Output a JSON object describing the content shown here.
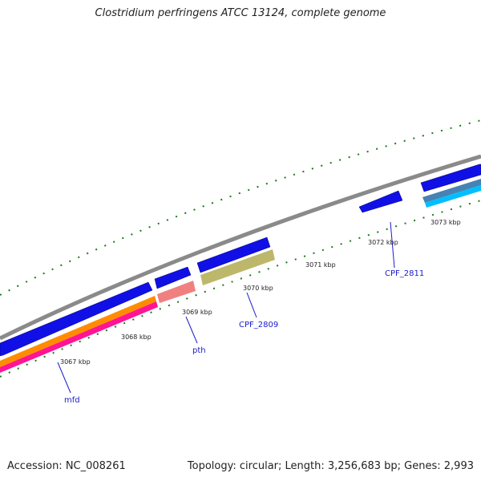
{
  "title": "Clostridium perfringens ATCC 13124, complete genome",
  "footer": {
    "accession": "Accession: NC_008261",
    "summary": "Topology: circular; Length: 3,256,683 bp; Genes: 2,993"
  },
  "scale_labels": [
    "3067 kbp",
    "3068 kbp",
    "3069 kbp",
    "3070 kbp",
    "3071 kbp",
    "3072 kbp",
    "3073 kbp"
  ],
  "gene_labels": [
    "mfd",
    "pth",
    "CPF_2809",
    "CPF_2811"
  ],
  "colors": {
    "backbone": "#8a8a8a",
    "gene_blue": "#1010e6",
    "orange": "#ff8c00",
    "pink": "#ff1493",
    "salmon": "#f08080",
    "olive": "#bdb76b",
    "steel": "#4682b4",
    "cyan": "#00bfff",
    "tick": "#1a7a1a",
    "label_blue": "#1a1acc"
  }
}
